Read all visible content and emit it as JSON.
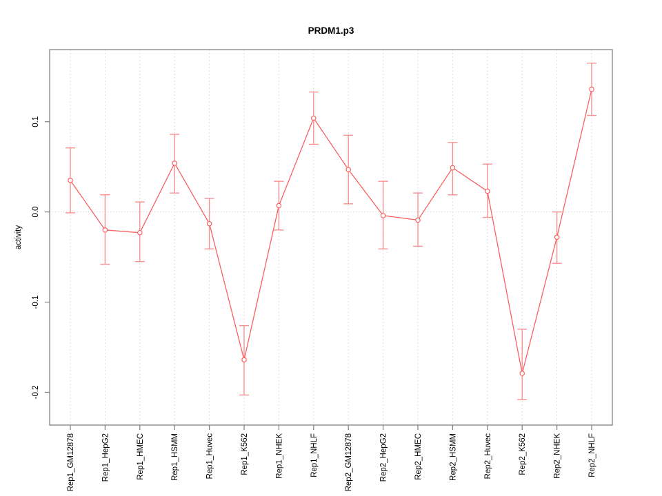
{
  "chart_data": {
    "type": "line",
    "title": "PRDM1.p3",
    "xlabel": "",
    "ylabel": "activity",
    "legend": null,
    "grid": "vertical-dashed-per-category",
    "zero_line_dotted": true,
    "x_tick_label_rotation_deg": 90,
    "y_tick_label_rotation_deg": 90,
    "point_style": "open-circle-with-error-bars",
    "ylim": [
      -0.2363,
      0.18
    ],
    "yticks": [
      {
        "label": "0.1",
        "value": 0.1
      },
      {
        "label": "0.0",
        "value": 0.0
      },
      {
        "label": "-0.1",
        "value": -0.1
      },
      {
        "label": "-0.2",
        "value": -0.2
      }
    ],
    "series": [
      {
        "name": "activity",
        "points": [
          {
            "category": "Rep1_GM12878",
            "value": 0.035,
            "err_low": -0.001,
            "err_high": 0.071
          },
          {
            "category": "Rep1_HepG2",
            "value": -0.02,
            "err_low": -0.058,
            "err_high": 0.019
          },
          {
            "category": "Rep1_HMEC",
            "value": -0.023,
            "err_low": -0.055,
            "err_high": 0.011
          },
          {
            "category": "Rep1_HSMM",
            "value": 0.054,
            "err_low": 0.021,
            "err_high": 0.086
          },
          {
            "category": "Rep1_Huvec",
            "value": -0.013,
            "err_low": -0.041,
            "err_high": 0.015
          },
          {
            "category": "Rep1_K562",
            "value": -0.164,
            "err_low": -0.203,
            "err_high": -0.126
          },
          {
            "category": "Rep1_NHEK",
            "value": 0.007,
            "err_low": -0.02,
            "err_high": 0.034
          },
          {
            "category": "Rep1_NHLF",
            "value": 0.104,
            "err_low": 0.075,
            "err_high": 0.133
          },
          {
            "category": "Rep2_GM12878",
            "value": 0.047,
            "err_low": 0.009,
            "err_high": 0.085
          },
          {
            "category": "Rep2_HepG2",
            "value": -0.004,
            "err_low": -0.041,
            "err_high": 0.034
          },
          {
            "category": "Rep2_HMEC",
            "value": -0.009,
            "err_low": -0.038,
            "err_high": 0.021
          },
          {
            "category": "Rep2_HSMM",
            "value": 0.049,
            "err_low": 0.019,
            "err_high": 0.077
          },
          {
            "category": "Rep2_Huvec",
            "value": 0.023,
            "err_low": -0.006,
            "err_high": 0.053
          },
          {
            "category": "Rep2_K562",
            "value": -0.179,
            "err_low": -0.208,
            "err_high": -0.13
          },
          {
            "category": "Rep2_NHEK",
            "value": -0.028,
            "err_low": -0.057,
            "err_high": 0.0
          },
          {
            "category": "Rep2_NHLF",
            "value": 0.136,
            "err_low": 0.107,
            "err_high": 0.165
          }
        ]
      }
    ],
    "colors": {
      "line": "#f96060",
      "point_stroke": "#f96060",
      "point_fill": "#ffffff",
      "error_bar": "#f89090",
      "grid": "#dcdcdc",
      "zero_line": "#d8d8d8",
      "box": "#818181",
      "text": "#000000"
    }
  }
}
